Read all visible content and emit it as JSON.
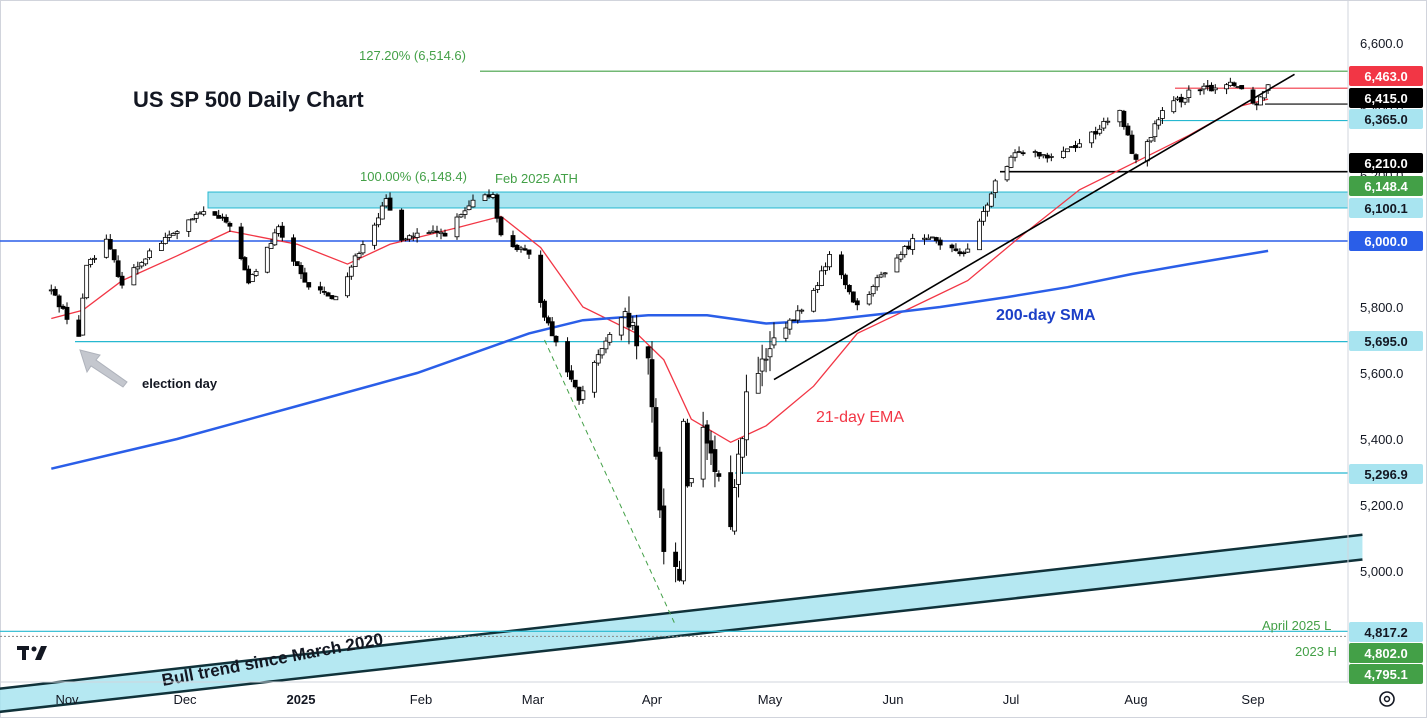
{
  "chart_data": {
    "type": "candlestick",
    "title": "US SP 500 Daily Chart",
    "x_tick_labels": [
      "Nov",
      "Dec",
      "2025",
      "Feb",
      "Mar",
      "Apr",
      "May",
      "Jun",
      "Jul",
      "Aug",
      "Sep"
    ],
    "y_ticks": [
      5000,
      5200,
      5400,
      5600,
      5800,
      6000,
      6200,
      6400,
      6600
    ],
    "y_tick_labels": [
      "5,000.0",
      "5,200.0",
      "5,400.0",
      "5,600.0",
      "5,800.0",
      "6,000.0",
      "6,200.0",
      "6,400.0",
      "6,600.0"
    ],
    "ylim": [
      4770,
      6650
    ],
    "price_path": [
      [
        "2024-10-28",
        5850
      ],
      [
        "2024-11-04",
        5712
      ],
      [
        "2024-11-06",
        5930
      ],
      [
        "2024-11-11",
        6001
      ],
      [
        "2024-11-15",
        5870
      ],
      [
        "2024-11-22",
        5969
      ],
      [
        "2024-11-29",
        6032
      ],
      [
        "2024-12-06",
        6090
      ],
      [
        "2024-12-13",
        6051
      ],
      [
        "2024-12-18",
        5872
      ],
      [
        "2024-12-26",
        6037
      ],
      [
        "2025-01-02",
        5868
      ],
      [
        "2025-01-10",
        5827
      ],
      [
        "2025-01-17",
        5996
      ],
      [
        "2025-01-23",
        6118
      ],
      [
        "2025-01-27",
        6012
      ],
      [
        "2025-02-07",
        6025
      ],
      [
        "2025-02-14",
        6114
      ],
      [
        "2025-02-19",
        6144
      ],
      [
        "2025-02-21",
        6013
      ],
      [
        "2025-02-28",
        5954
      ],
      [
        "2025-03-04",
        5778
      ],
      [
        "2025-03-13",
        5521
      ],
      [
        "2025-03-19",
        5675
      ],
      [
        "2025-03-25",
        5776
      ],
      [
        "2025-03-31",
        5611
      ],
      [
        "2025-04-04",
        5074
      ],
      [
        "2025-04-08",
        4982
      ],
      [
        "2025-04-09",
        5456
      ],
      [
        "2025-04-10",
        5268
      ],
      [
        "2025-04-14",
        5405
      ],
      [
        "2025-04-21",
        5158
      ],
      [
        "2025-04-25",
        5525
      ],
      [
        "2025-05-02",
        5686
      ],
      [
        "2025-05-12",
        5844
      ],
      [
        "2025-05-16",
        5958
      ],
      [
        "2025-05-23",
        5802
      ],
      [
        "2025-05-30",
        5911
      ],
      [
        "2025-06-06",
        6000
      ],
      [
        "2025-06-11",
        6022
      ],
      [
        "2025-06-13",
        5977
      ],
      [
        "2025-06-20",
        5967
      ],
      [
        "2025-06-27",
        6173
      ],
      [
        "2025-07-03",
        6279
      ],
      [
        "2025-07-11",
        6260
      ],
      [
        "2025-07-18",
        6297
      ],
      [
        "2025-07-28",
        6389
      ],
      [
        "2025-08-01",
        6238
      ],
      [
        "2025-08-08",
        6389
      ],
      [
        "2025-08-15",
        6449
      ],
      [
        "2025-08-22",
        6467
      ],
      [
        "2025-08-27",
        6481
      ],
      [
        "2025-08-29",
        6460
      ],
      [
        "2025-09-02",
        6415
      ],
      [
        "2025-09-05",
        6481
      ]
    ],
    "series": [
      {
        "name": "21-day EMA",
        "color": "#f23645",
        "points": [
          [
            "2024-10-28",
            5765
          ],
          [
            "2024-11-05",
            5790
          ],
          [
            "2024-11-15",
            5880
          ],
          [
            "2024-11-29",
            5955
          ],
          [
            "2024-12-13",
            6030
          ],
          [
            "2024-12-31",
            5990
          ],
          [
            "2025-01-13",
            5930
          ],
          [
            "2025-01-24",
            5990
          ],
          [
            "2025-02-10",
            6040
          ],
          [
            "2025-02-21",
            6075
          ],
          [
            "2025-03-03",
            5980
          ],
          [
            "2025-03-14",
            5800
          ],
          [
            "2025-03-28",
            5720
          ],
          [
            "2025-04-04",
            5640
          ],
          [
            "2025-04-11",
            5460
          ],
          [
            "2025-04-21",
            5390
          ],
          [
            "2025-04-30",
            5440
          ],
          [
            "2025-05-12",
            5560
          ],
          [
            "2025-05-23",
            5720
          ],
          [
            "2025-06-06",
            5800
          ],
          [
            "2025-06-20",
            5880
          ],
          [
            "2025-07-03",
            6010
          ],
          [
            "2025-07-18",
            6155
          ],
          [
            "2025-08-01",
            6240
          ],
          [
            "2025-08-15",
            6320
          ],
          [
            "2025-08-29",
            6410
          ],
          [
            "2025-09-05",
            6430
          ]
        ]
      },
      {
        "name": "200-day SMA",
        "color": "#2a5ee8",
        "points": [
          [
            "2024-10-28",
            5310
          ],
          [
            "2024-11-29",
            5400
          ],
          [
            "2024-12-31",
            5500
          ],
          [
            "2025-01-31",
            5600
          ],
          [
            "2025-02-28",
            5720
          ],
          [
            "2025-03-14",
            5760
          ],
          [
            "2025-03-31",
            5775
          ],
          [
            "2025-04-15",
            5775
          ],
          [
            "2025-04-30",
            5750
          ],
          [
            "2025-05-15",
            5760
          ],
          [
            "2025-05-30",
            5780
          ],
          [
            "2025-06-13",
            5800
          ],
          [
            "2025-06-30",
            5830
          ],
          [
            "2025-07-15",
            5860
          ],
          [
            "2025-07-31",
            5900
          ],
          [
            "2025-08-15",
            5930
          ],
          [
            "2025-09-05",
            5970
          ]
        ]
      }
    ],
    "horizontal_levels": [
      {
        "value": 6514.6,
        "color": "#43a047"
      },
      {
        "value": 6463.0,
        "color": "#f23645"
      },
      {
        "value": 6415.0,
        "color": "#000000"
      },
      {
        "value": 6365.0,
        "color": "#26b8d0"
      },
      {
        "value": 6210.0,
        "color": "#000000"
      },
      {
        "value": 6000.0,
        "color": "#2a5ee8"
      },
      {
        "value": 5695.0,
        "color": "#26b8d0"
      },
      {
        "value": 5296.9,
        "color": "#26b8d0"
      },
      {
        "value": 4817.2,
        "color": "#26b8d0"
      }
    ],
    "zones": [
      {
        "from": 6100.1,
        "to": 6148.4,
        "fill": "#a8e4f0"
      }
    ],
    "price_labels": [
      {
        "text": "6,463.0",
        "value": 6463.0,
        "bg": "#f23645",
        "fg": "#ffffff"
      },
      {
        "text": "6,415.0",
        "value": 6415.0,
        "bg": "#000000",
        "fg": "#ffffff"
      },
      {
        "text": "6,365.0",
        "value": 6365.0,
        "bg": "#a8e4f0",
        "fg": "#131722"
      },
      {
        "text": "6,210.0",
        "value": 6210.0,
        "bg": "#000000",
        "fg": "#ffffff"
      },
      {
        "text": "6,148.4",
        "value": 6148.4,
        "bg": "#43a047",
        "fg": "#ffffff"
      },
      {
        "text": "6,100.1",
        "value": 6100.1,
        "bg": "#a8e4f0",
        "fg": "#131722"
      },
      {
        "text": "6,000.0",
        "value": 6000.0,
        "bg": "#2a5ee8",
        "fg": "#ffffff"
      },
      {
        "text": "5,695.0",
        "value": 5695.0,
        "bg": "#a8e4f0",
        "fg": "#131722"
      },
      {
        "text": "5,296.9",
        "value": 5296.9,
        "bg": "#a8e4f0",
        "fg": "#131722"
      },
      {
        "text": "4,817.2",
        "value": 4817.2,
        "bg": "#a8e4f0",
        "fg": "#131722"
      },
      {
        "text": "4,802.0",
        "value": 4802.0,
        "bg": "#43a047",
        "fg": "#ffffff"
      },
      {
        "text": "4,795.1",
        "value": 4795.1,
        "bg": "#43a047",
        "fg": "#ffffff"
      }
    ],
    "annotations": [
      {
        "text": "127.20% (6,514.6)",
        "color": "#43a047"
      },
      {
        "text": "100.00% (6,148.4)",
        "color": "#43a047"
      },
      {
        "text": "Feb 2025 ATH",
        "color": "#43a047"
      },
      {
        "text": "election day",
        "color": "#131722"
      },
      {
        "text": "200-day SMA",
        "color": "#1c3fc7"
      },
      {
        "text": "21-day EMA",
        "color": "#f23645"
      },
      {
        "text": "April 2025 L",
        "color": "#43a047"
      },
      {
        "text": "2023 H",
        "color": "#43a047"
      },
      {
        "text": "Bull trend since March 2020",
        "color": "#131722"
      }
    ],
    "trendlines": [
      {
        "name": "bull-trend-channel-upper",
        "from": [
          "2024-09-20",
          4610
        ],
        "to": [
          "2025-09-30",
          5110
        ]
      },
      {
        "name": "bull-trend-channel-lower",
        "from": [
          "2024-09-20",
          4540
        ],
        "to": [
          "2025-09-30",
          5035
        ]
      },
      {
        "name": "support-trendline",
        "from": [
          "2025-05-02",
          5580
        ],
        "to": [
          "2025-09-12",
          6505
        ]
      },
      {
        "name": "fib-dashed-line",
        "from": [
          "2025-03-04",
          5700
        ],
        "to": [
          "2025-04-07",
          4835
        ]
      }
    ]
  },
  "branding": {
    "logo_text": "TV"
  },
  "colors": {
    "bull": "#ffffff",
    "bear": "#000000",
    "axis_bg": "#ffffff",
    "grid": "#e0e3eb"
  },
  "icons": {
    "settings": "gear-icon"
  }
}
